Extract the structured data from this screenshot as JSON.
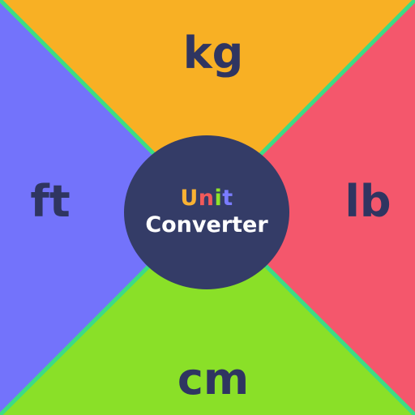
{
  "units": {
    "top": "kg",
    "right": "lb",
    "bottom": "cm",
    "left": "ft"
  },
  "title": {
    "line1_letters": [
      "U",
      "n",
      "i",
      "t"
    ],
    "line1_colors": [
      "#f9b233",
      "#f25a5a",
      "#8fe32a",
      "#7a7cff"
    ],
    "line2": "Converter"
  },
  "colors": {
    "top_quadrant": "#f8b024",
    "right_quadrant": "#f4576c",
    "bottom_quadrant": "#8ae028",
    "left_quadrant": "#7373fb",
    "divider": "#3ddc84",
    "circle": "#343c67",
    "label_text": "#2f3561"
  }
}
